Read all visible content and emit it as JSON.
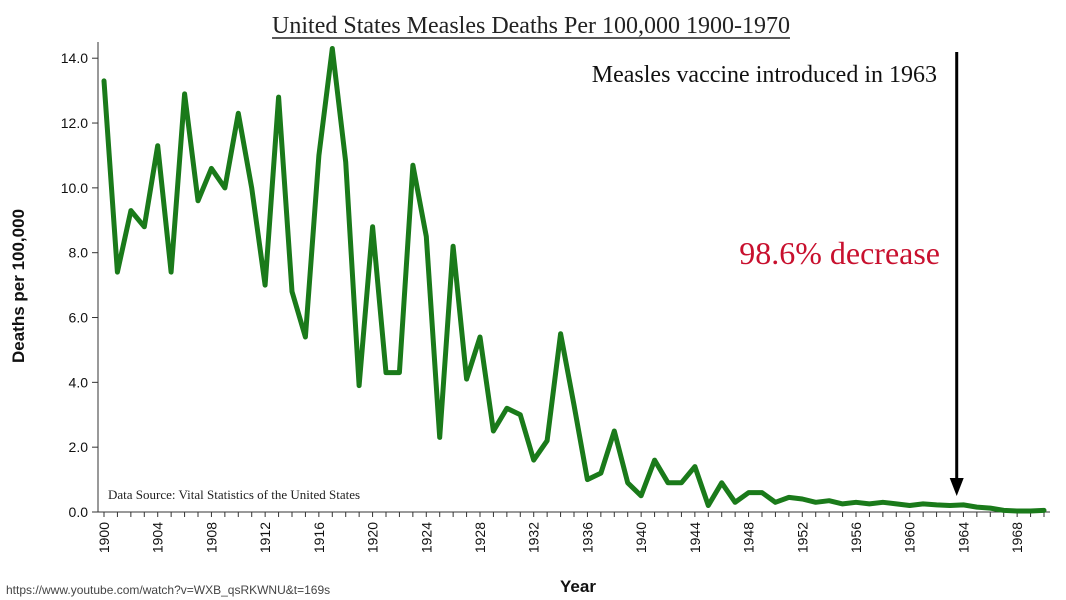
{
  "chart_data": {
    "type": "line",
    "title": "United States Measles Deaths Per 100,000 1900-1970",
    "xlabel": "Year",
    "ylabel": "Deaths per 100,000",
    "xlim": [
      1900,
      1970
    ],
    "ylim": [
      0,
      14.5
    ],
    "x_ticks": [
      "1900",
      "1904",
      "1908",
      "1912",
      "1916",
      "1920",
      "1924",
      "1928",
      "1932",
      "1936",
      "1940",
      "1944",
      "1948",
      "1952",
      "1956",
      "1960",
      "1964",
      "1968"
    ],
    "y_ticks": [
      "0.0",
      "2.0",
      "4.0",
      "6.0",
      "8.0",
      "10.0",
      "12.0",
      "14.0"
    ],
    "line_color": "#1a7a1a",
    "series": [
      {
        "x": [
          1900,
          1901,
          1902,
          1903,
          1904,
          1905,
          1906,
          1907,
          1908,
          1909,
          1910,
          1911,
          1912,
          1913,
          1914,
          1915,
          1916,
          1917,
          1918,
          1919,
          1920,
          1921,
          1922,
          1923,
          1924,
          1925,
          1926,
          1927,
          1928,
          1929,
          1930,
          1931,
          1932,
          1933,
          1934,
          1935,
          1936,
          1937,
          1938,
          1939,
          1940,
          1941,
          1942,
          1943,
          1944,
          1945,
          1946,
          1947,
          1948,
          1949,
          1950,
          1951,
          1952,
          1953,
          1954,
          1955,
          1956,
          1957,
          1958,
          1959,
          1960,
          1961,
          1962,
          1963,
          1964,
          1965,
          1966,
          1967,
          1968,
          1969,
          1970
        ],
        "values": [
          13.3,
          7.4,
          9.3,
          8.8,
          11.3,
          7.4,
          12.9,
          9.6,
          10.6,
          10.0,
          12.3,
          10.0,
          7.0,
          12.8,
          6.8,
          5.4,
          11.0,
          14.3,
          10.8,
          3.9,
          8.8,
          4.3,
          4.3,
          10.7,
          8.5,
          2.3,
          8.2,
          4.1,
          5.4,
          2.5,
          3.2,
          3.0,
          1.6,
          2.2,
          5.5,
          3.3,
          1.0,
          1.2,
          2.5,
          0.9,
          0.5,
          1.6,
          0.9,
          0.9,
          1.4,
          0.2,
          0.9,
          0.3,
          0.6,
          0.6,
          0.3,
          0.45,
          0.4,
          0.3,
          0.35,
          0.25,
          0.3,
          0.25,
          0.3,
          0.25,
          0.2,
          0.25,
          0.22,
          0.2,
          0.22,
          0.15,
          0.12,
          0.05,
          0.03,
          0.03,
          0.05
        ]
      }
    ],
    "annotations": {
      "vaccine": "Measles vaccine introduced in 1963",
      "decrease": "98.6% decrease",
      "source": "Data Source:  Vital Statistics of the United States",
      "arrow_year": 1963.5,
      "decrease_color": "#c8102e"
    }
  },
  "footer": {
    "url": "https://www.youtube.com/watch?v=WXB_qsRKWNU&t=169s"
  }
}
